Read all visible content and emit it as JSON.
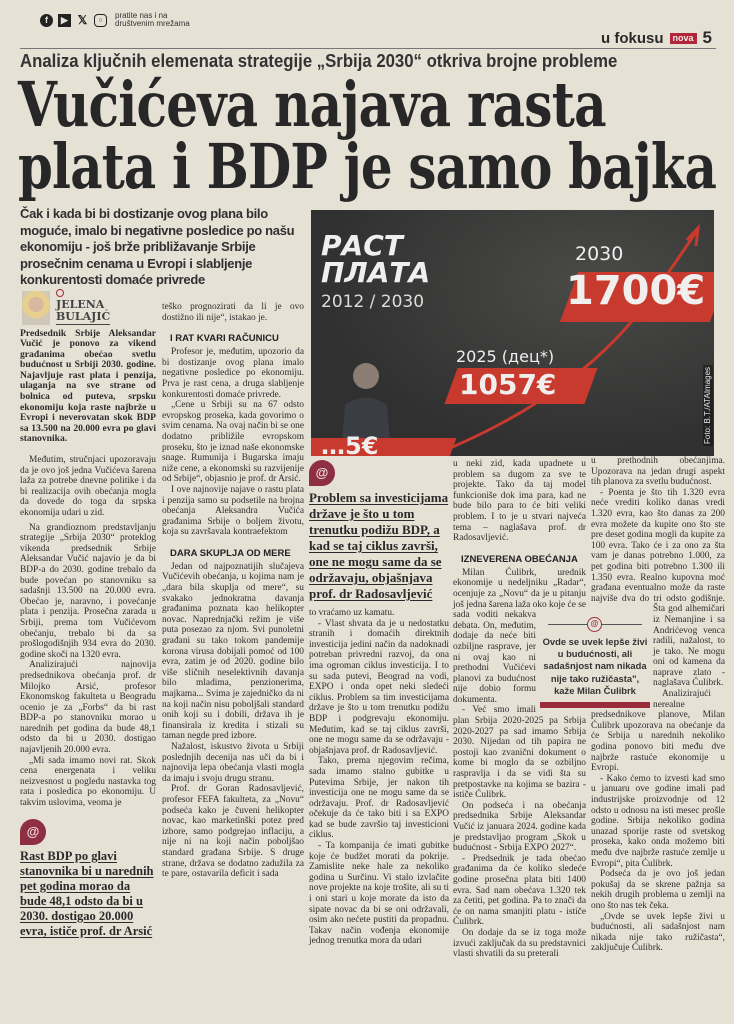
{
  "topbar": {
    "social_icons": [
      "facebook-icon",
      "youtube-icon",
      "x-icon",
      "instagram-icon"
    ],
    "follow_text": "pratite nas i na društvenim mrežama",
    "section": "u fokusu",
    "brand": "nova",
    "page_number": "5"
  },
  "article": {
    "kicker": "Analiza ključnih elemenata strategije „Srbija 2030“ otkriva brojne probleme",
    "headline_line1": "Vučićeva najava rasta",
    "headline_line2": "plata i BDP je samo bajka",
    "deck": "Čak i kada bi bi dostizanje ovog plana bilo moguće, imalo bi negativne posledice po našu ekonomiju - još brže približavanje Srbije prosečnim cenama u Evropi i slabljenje konkurentosti domaće privrede",
    "author_first": "JELENA",
    "author_last": "BULAJIĆ"
  },
  "photo": {
    "title_line1": "РАСТ",
    "title_line2": "ПЛАТА",
    "range": "2012 / 2030",
    "year_2030": "2030",
    "value_2030": "1700€",
    "year_2025": "2025 (дец*)",
    "value_2025": "1057€",
    "value_2012_partial": "…5€",
    "credit": "Foto: B.T./ATAImages",
    "accent_color": "#c8392e"
  },
  "col1": {
    "lead": "Predsednik Srbije Aleksandar Vučić je ponovo za vikend građanima obećao svetlu budućnost u Srbiji 2030. godine. Najavljuje rast plata i penzija, ulaganja na sve strane od bolnica od puteva, srpsku ekonomiju koja raste najbrže u Evropi i neverovatan skok BDP sa 13.500 na 20.000 evra po glavi stanovnika.",
    "p": [
      "Međutim, stručnjaci upozoravaju da je ovo još jedna Vučićeva šarena laža za potrebe dnevne politike i da bi realizacija ovih obećanja mogla da dovede do toga da srpska ekonomija udari u zid.",
      "Na grandioznom predstavljanju strategije „Srbija 2030“ proteklog vikenda predsednik Srbije Aleksandar Vučić najavio je da bi BDP-a do 2030. godine trebalo da bude povećan po stanovniku sa sadašnji 13.500 na 20.000 evra. Obećao je, naravno, i povećanje plata i penzija. Prosečna zarada u Srbiji, prema tom Vučićevom obećanju, trebalo bi da sa prošlogodišnjih 934 evra do 2030. godine skoči na 1320 evra.",
      "Analizirajući najnovija predsednikova obećanja prof. dr Milojko Arsić, profesor Ekonomskog fakulteta u Beogradu ocenio je za „Forbs“ da bi rast BDP-a po stanovniku morao u narednih pet godina da bude 48,1 odsto da bi u 2030. dostigao najavljenih 20.000 evra.",
      "„Mi sada imamo novi rat. Skok cena energenata i veliku neizvesnost u pogledu nastavka tog rata i posledica po ekonomiju. U takvim uslovima, veoma je"
    ],
    "pull_quote": "Rast BDP po glavi stanovnika bi u narednih pet godina morao da bude 48,1 odsto da bi u 2030. dostigao 20.000 evra, ističe prof. dr Arsić"
  },
  "col2": {
    "p0": "teško prognozirati da li je ovo dostižno ili nije“, istakao je.",
    "h1": "I RAT KVARI RAČUNICU",
    "p": [
      "Profesor je, međutim, upozorio da bi dostizanje ovog plana imalo negativne posledice po ekonomiju. Prva je rast cena, a druga slabljenje konkurentosti domaće privrede.",
      "„Cene u Srbiji su na 67 odsto evropskog proseka, kada govorimo o svim cenama. Na ovaj način bi se one dodatno približile evropskom proseku, što je iznad naše ekonomske snage. Rumunija i Bugarska imaju niže cene, a ekonomski su razvijenije od Srbije“, objasnio je prof. dr Arsić.",
      "I ove najnovije najave o rastu plata i penzija samo su podsetile na brojna obećanja Aleksandra Vučića građanima Srbije o boljem životu, koja su završavala kontraefektom"
    ],
    "h2": "DARA SKUPLJA OD MERE",
    "q": [
      "Jedan od najpoznatijih slučajeva Vučićevih obećanja, u kojima nam je „dara bila skuplja od mere“, su svakako jednokratna davanja građanima poznata kao helikopter novac. Naprednjački režim je više puta posezao za njom. Svi punoletni građani su tako tokom pandemije korona virusa dobijali pomoć od 100 evra, zatim je od 2020. godine bilo više sličnih neselektivnih davanja bilo mladima, penzionerima, majkama... Svima je zajedničko da ni na koji način nisu poboljšali standard onih koji su i dobili, država ih je finansirala iz kredita i stizali su taman negde pred izbore.",
      "Nažalost, iskustvo života u Srbiji poslednjih decenija nas uči da bi i najnovija lepa obećanja vlasti mogla da imaju i svoju drugu stranu.",
      "Prof. dr Goran Radosavljević, profesor FEFA fakulteta, za „Novu“ podseća kako je čuveni helikopter novac, kao marketinški potez pred izbore, samo podgrejao inflaciju, a nije ni na koji način poboljšao standard građana Srbije. S druge strane, država se dodatno zadužila za te pare, ostavarila deficit i sada"
    ]
  },
  "col3": {
    "pull_quote": "Problem sa investicijama države je što u tom trenutku podižu BDP, a kad se taj ciklus završi, one ne mogu same da se održavaju, objašnjava prof. dr Radosavljević",
    "p0": "to vraćamo uz kamatu.",
    "p": [
      "- Vlast shvata da je u nedostatku stranih i domaćih direktnih investicija jedini način da nadoknadi potreban privredni razvoj, da ona ima ogroman ciklus investicija. I to su sada putevi, Beograd na vodi, EXPO i onda opet neki sledeći ciklus. Problem sa tim investicijama države je što u tom trenutku podižu BDP i podgrevaju ekonomiju. Međutim, kad se taj ciklus završi, one ne mogu same da se održavaju - objašnjava prof. dr Radosavljević.",
      "Tako, prema njegovim rečima, sada imamo stalno gubitke u Putevima Srbije, jer nakon tih investicija one ne mogu same da se održavaju. Prof. dr Radosavljević očekuje da će tako biti i sa EXPO kad se bude završio taj investicioni ciklus.",
      "- Ta kompanija će imati gubitke koje će budžet morati da pokrije. Zamislite neke hale za nekoliko godina u Surčinu. Vi stalo izvlačite nove projekte na koje trošite, ali su ti i oni stari u koje morate da isto da sipate novac da bi se oni održavali, osim ako nećete pustiti da propadnu. Takav način vođenja ekonomije jednog trenutka mora da udari"
    ]
  },
  "col4": {
    "p0": "u neki zid, kada upadnete u problem sa dugom za sve te projekte. Tako da taj model funkcioniše dok ima para, kad ne bude bilo para to će biti veliki problem. I to je u stvari najveća tema – naglašava prof. dr Radosavljević.",
    "h1": "IZNEVERENA OBEĆANJA",
    "p": [
      "Milan Ćulibrk, urednik ekonomije u nedeljniku „Radar“, ocenjuje za „Novu“ da je u pitanju još jedna šarena laža oko koje će se sada voditi nekakva debata. On, međutim, dodaje da neće biti ozbiljne rasprave, jer ni ovaj kao ni prethodni Vučićevi planovi za budućnost nije dobio formu dokumenta.",
      "- Već smo imali plan Srbija 2020-2025 pa Srbija 2020-2027 pa sad imamo Srbija 2030. Nijedan od tih papira ne postoji kao zvanični dokument o kome bi moglo da se ozbiljno raspravlja i da se vidi šta su pretpostavke na kojima se bazira - ističe Ćulibrk.",
      "On podseća i na obećanja predsednika Srbije Aleksandar Vučić iz januara 2024. godine kada je predstavljao program „Skok u budućnost - Srbija EXPO 2027“.",
      "- Predsednik je tada obećao građanima da će koliko sledeće godine prosečna plata biti 1400 evra. Sad nam obećava 1.320 tek za četiti, pet godina. Pa to znači da će on nama smanjiti platu - ističe Ćulibrk.",
      "On dodaje da se iz toga može izvući zaključak da su predstavnici vlasti shvatili da su preterali"
    ]
  },
  "col5": {
    "p0": "u prethodnih obećanjima. Upozorava na jedan drugi aspekt tih planova za svetlu budućnost.",
    "p": [
      "- Poenta je što tih 1.320 evra neće vrediti koliko danas vredi 1.320 evra, kao što danas za 200 evra možete da kupite ono što ste pre deset godina mogli da kupite za 100 evra. Tako će i za ono za šta vam je danas potrebno 1.000, za pet godina biti potrebno 1.300 ili 1.350 evra. Realno kupovna moć građana eventualno može da raste najviše dva do tri odsto godišnje. Šta god alhemičari iz Nemanjine i sa Andrićevog venca radili, nažalost, to je tako. Ne mogu oni od kamena da naprave zlato - naglašava Ćulibrk.",
      "Analizirajući nerealne predsednikove planove, Milan Ćulibrk upozorava na obećanje da će Srbija u narednih nekoliko godina ponovo biti među dve najbrže rastuće ekonomije u Evropi.",
      "- Kako ćemo to izvesti kad smo u januaru ove godine imali pad industrijske proizvodnje od 12 odsto u odnosu na isti mesec prošle godine. Srbija nekoliko godina unazad sporije raste od svetskog proseka, kako onda možemo biti među dve najbrže rastuće zemlje u Evropi“, pita Ćulibrk.",
      "Podseća da je ovo još jedan pokušaj da se skrene pažnja sa nekih drugih problema u zemlji na ono što nas tek čeka.",
      "„Ovde se uvek lepše živi u budućnosti, ali sadašnjost nam nikada nije tako ružičasta“, zaključuje Ćulibrk."
    ],
    "box_quote": "Ovde se uvek lepše živi u budućnosti, ali sadašnjost nam nikada nije tako ružičasta\", kaže Milan Čulibrk"
  }
}
